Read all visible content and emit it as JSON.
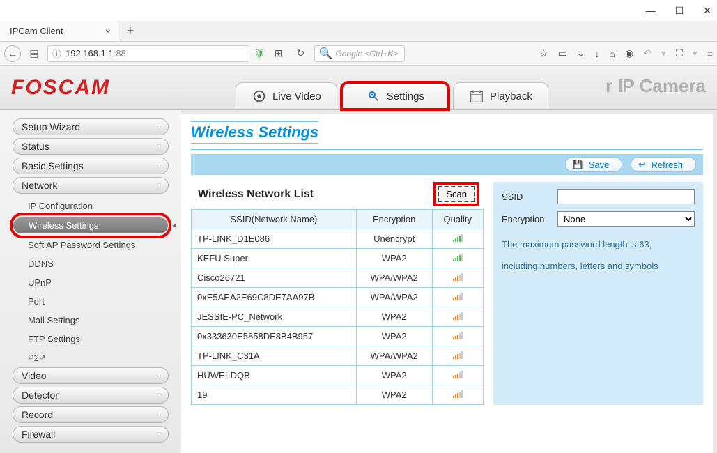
{
  "window": {
    "tab_title": "IPCam Client"
  },
  "nav": {
    "url_host": "192.168.1.1",
    "url_port": ":88",
    "search_placeholder": "Google <Ctrl+K>"
  },
  "header": {
    "logo": "FOSCAM",
    "brand": "r IP Camera",
    "tabs": {
      "live": "Live Video",
      "settings": "Settings",
      "playback": "Playback"
    }
  },
  "sidebar": {
    "menus": [
      "Setup Wizard",
      "Status",
      "Basic Settings",
      "Network",
      "Video",
      "Detector",
      "Record",
      "Firewall"
    ],
    "network_sub": [
      "IP Configuration",
      "Wireless Settings",
      "Soft AP Password Settings",
      "DDNS",
      "UPnP",
      "Port",
      "Mail Settings",
      "FTP Settings",
      "P2P"
    ],
    "selected_sub": "Wireless Settings"
  },
  "content": {
    "title": "Wireless Settings",
    "buttons": {
      "save": "Save",
      "refresh": "Refresh",
      "scan": "Scan"
    },
    "list_title": "Wireless Network List",
    "columns": {
      "ssid": "SSID(Network Name)",
      "enc": "Encryption",
      "qual": "Quality"
    },
    "networks": [
      {
        "ssid": "TP-LINK_D1E086",
        "enc": "Unencrypt",
        "q": "q4"
      },
      {
        "ssid": "KEFU Super",
        "enc": "WPA2",
        "q": "q4"
      },
      {
        "ssid": "Cisco26721",
        "enc": "WPA/WPA2",
        "q": "o3"
      },
      {
        "ssid": "0xE5AEA2E69C8DE7AA97B",
        "enc": "WPA/WPA2",
        "q": "o3"
      },
      {
        "ssid": "JESSIE-PC_Network",
        "enc": "WPA2",
        "q": "o3"
      },
      {
        "ssid": "0x333630E5858DE8B4B957",
        "enc": "WPA2",
        "q": "o3"
      },
      {
        "ssid": "TP-LINK_C31A",
        "enc": "WPA/WPA2",
        "q": "o3"
      },
      {
        "ssid": "HUWEI-DQB",
        "enc": "WPA2",
        "q": "o3"
      },
      {
        "ssid": "19",
        "enc": "WPA2",
        "q": "o3"
      }
    ],
    "form": {
      "ssid_label": "SSID",
      "ssid_value": "",
      "enc_label": "Encryption",
      "enc_value": "None",
      "note1": "The maximum password length is 63,",
      "note2": "including numbers, letters and symbols"
    }
  },
  "colors": {
    "accent_blue": "#0090e0",
    "highlight_red": "#e30000",
    "panel_blue": "#d4ecfa",
    "bar_blue": "#aad8f0"
  }
}
